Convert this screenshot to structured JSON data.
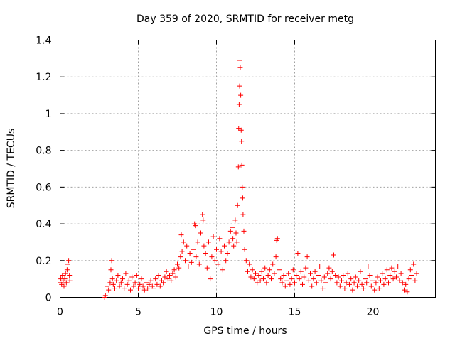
{
  "chart_data": {
    "type": "scatter",
    "title": "Day 359 of 2020, SRMTID for receiver metg",
    "xlabel": "GPS time / hours",
    "ylabel": "SRMTID / TECUs",
    "xlim": [
      0,
      24
    ],
    "ylim": [
      0,
      1.4
    ],
    "xticks": [
      0,
      5,
      10,
      15,
      20
    ],
    "xtick_labels": [
      "0",
      "5",
      "10",
      "15",
      "20"
    ],
    "yticks": [
      0,
      0.2,
      0.4,
      0.6,
      0.8,
      1.0,
      1.2,
      1.4
    ],
    "ytick_labels": [
      "0",
      "0.2",
      "0.4",
      "0.6",
      "0.8",
      "1",
      "1.2",
      "1.4"
    ],
    "grid": true,
    "marker": "+",
    "series": [
      {
        "name": "SRMTID metg",
        "color": "#ff0000",
        "points": [
          [
            0.0,
            0.08
          ],
          [
            0.05,
            0.1
          ],
          [
            0.1,
            0.07
          ],
          [
            0.15,
            0.12
          ],
          [
            0.2,
            0.09
          ],
          [
            0.25,
            0.06
          ],
          [
            0.3,
            0.1
          ],
          [
            0.35,
            0.13
          ],
          [
            0.4,
            0.08
          ],
          [
            0.45,
            0.15
          ],
          [
            0.5,
            0.18
          ],
          [
            0.55,
            0.2
          ],
          [
            0.6,
            0.12
          ],
          [
            0.62,
            0.09
          ],
          [
            2.85,
            0.0
          ],
          [
            2.9,
            0.01
          ],
          [
            3.0,
            0.06
          ],
          [
            3.1,
            0.04
          ],
          [
            3.2,
            0.08
          ],
          [
            3.25,
            0.15
          ],
          [
            3.3,
            0.2
          ],
          [
            3.35,
            0.1
          ],
          [
            3.4,
            0.07
          ],
          [
            3.5,
            0.05
          ],
          [
            3.6,
            0.09
          ],
          [
            3.7,
            0.12
          ],
          [
            3.8,
            0.06
          ],
          [
            3.9,
            0.08
          ],
          [
            4.0,
            0.1
          ],
          [
            4.1,
            0.05
          ],
          [
            4.2,
            0.13
          ],
          [
            4.3,
            0.07
          ],
          [
            4.4,
            0.09
          ],
          [
            4.5,
            0.04
          ],
          [
            4.6,
            0.11
          ],
          [
            4.7,
            0.06
          ],
          [
            4.8,
            0.08
          ],
          [
            4.9,
            0.12
          ],
          [
            5.0,
            0.05
          ],
          [
            5.1,
            0.07
          ],
          [
            5.2,
            0.1
          ],
          [
            5.3,
            0.06
          ],
          [
            5.4,
            0.04
          ],
          [
            5.5,
            0.08
          ],
          [
            5.6,
            0.05
          ],
          [
            5.7,
            0.07
          ],
          [
            5.8,
            0.09
          ],
          [
            5.9,
            0.06
          ],
          [
            6.0,
            0.05
          ],
          [
            6.1,
            0.1
          ],
          [
            6.2,
            0.07
          ],
          [
            6.3,
            0.12
          ],
          [
            6.4,
            0.06
          ],
          [
            6.5,
            0.09
          ],
          [
            6.6,
            0.08
          ],
          [
            6.7,
            0.11
          ],
          [
            6.8,
            0.14
          ],
          [
            6.9,
            0.1
          ],
          [
            7.0,
            0.12
          ],
          [
            7.1,
            0.09
          ],
          [
            7.2,
            0.13
          ],
          [
            7.3,
            0.15
          ],
          [
            7.4,
            0.11
          ],
          [
            7.5,
            0.18
          ],
          [
            7.6,
            0.16
          ],
          [
            7.7,
            0.22
          ],
          [
            7.75,
            0.34
          ],
          [
            7.8,
            0.25
          ],
          [
            7.9,
            0.3
          ],
          [
            8.0,
            0.2
          ],
          [
            8.1,
            0.28
          ],
          [
            8.2,
            0.17
          ],
          [
            8.3,
            0.24
          ],
          [
            8.4,
            0.19
          ],
          [
            8.5,
            0.26
          ],
          [
            8.6,
            0.4
          ],
          [
            8.65,
            0.39
          ],
          [
            8.7,
            0.22
          ],
          [
            8.8,
            0.3
          ],
          [
            8.9,
            0.18
          ],
          [
            9.0,
            0.35
          ],
          [
            9.1,
            0.45
          ],
          [
            9.15,
            0.42
          ],
          [
            9.2,
            0.28
          ],
          [
            9.3,
            0.24
          ],
          [
            9.4,
            0.16
          ],
          [
            9.5,
            0.3
          ],
          [
            9.6,
            0.1
          ],
          [
            9.7,
            0.22
          ],
          [
            9.8,
            0.33
          ],
          [
            9.9,
            0.2
          ],
          [
            10.0,
            0.26
          ],
          [
            10.1,
            0.18
          ],
          [
            10.2,
            0.32
          ],
          [
            10.3,
            0.25
          ],
          [
            10.4,
            0.15
          ],
          [
            10.5,
            0.28
          ],
          [
            10.6,
            0.2
          ],
          [
            10.7,
            0.24
          ],
          [
            10.8,
            0.3
          ],
          [
            10.9,
            0.36
          ],
          [
            11.0,
            0.38
          ],
          [
            11.05,
            0.32
          ],
          [
            11.1,
            0.28
          ],
          [
            11.2,
            0.42
          ],
          [
            11.25,
            0.35
          ],
          [
            11.3,
            0.3
          ],
          [
            11.35,
            0.5
          ],
          [
            11.4,
            0.71
          ],
          [
            11.42,
            0.92
          ],
          [
            11.45,
            1.05
          ],
          [
            11.48,
            1.15
          ],
          [
            11.5,
            1.29
          ],
          [
            11.52,
            1.25
          ],
          [
            11.55,
            1.1
          ],
          [
            11.58,
            0.91
          ],
          [
            11.6,
            0.85
          ],
          [
            11.62,
            0.72
          ],
          [
            11.65,
            0.6
          ],
          [
            11.68,
            0.54
          ],
          [
            11.7,
            0.45
          ],
          [
            11.75,
            0.36
          ],
          [
            11.8,
            0.26
          ],
          [
            11.9,
            0.2
          ],
          [
            12.0,
            0.14
          ],
          [
            12.1,
            0.18
          ],
          [
            12.2,
            0.11
          ],
          [
            12.3,
            0.15
          ],
          [
            12.4,
            0.1
          ],
          [
            12.5,
            0.13
          ],
          [
            12.6,
            0.08
          ],
          [
            12.7,
            0.12
          ],
          [
            12.8,
            0.09
          ],
          [
            12.9,
            0.14
          ],
          [
            13.0,
            0.1
          ],
          [
            13.1,
            0.16
          ],
          [
            13.2,
            0.08
          ],
          [
            13.3,
            0.12
          ],
          [
            13.4,
            0.15
          ],
          [
            13.5,
            0.1
          ],
          [
            13.6,
            0.18
          ],
          [
            13.7,
            0.13
          ],
          [
            13.8,
            0.22
          ],
          [
            13.85,
            0.31
          ],
          [
            13.9,
            0.32
          ],
          [
            14.0,
            0.15
          ],
          [
            14.1,
            0.1
          ],
          [
            14.2,
            0.08
          ],
          [
            14.3,
            0.12
          ],
          [
            14.4,
            0.06
          ],
          [
            14.5,
            0.09
          ],
          [
            14.6,
            0.13
          ],
          [
            14.7,
            0.07
          ],
          [
            14.8,
            0.1
          ],
          [
            14.9,
            0.15
          ],
          [
            15.0,
            0.08
          ],
          [
            15.1,
            0.12
          ],
          [
            15.2,
            0.24
          ],
          [
            15.3,
            0.1
          ],
          [
            15.4,
            0.14
          ],
          [
            15.5,
            0.07
          ],
          [
            15.6,
            0.11
          ],
          [
            15.7,
            0.16
          ],
          [
            15.8,
            0.22
          ],
          [
            15.9,
            0.09
          ],
          [
            16.0,
            0.13
          ],
          [
            16.1,
            0.06
          ],
          [
            16.2,
            0.1
          ],
          [
            16.3,
            0.14
          ],
          [
            16.4,
            0.08
          ],
          [
            16.5,
            0.12
          ],
          [
            16.6,
            0.17
          ],
          [
            16.7,
            0.09
          ],
          [
            16.8,
            0.05
          ],
          [
            16.9,
            0.11
          ],
          [
            17.0,
            0.08
          ],
          [
            17.1,
            0.13
          ],
          [
            17.2,
            0.16
          ],
          [
            17.3,
            0.1
          ],
          [
            17.4,
            0.14
          ],
          [
            17.5,
            0.23
          ],
          [
            17.6,
            0.12
          ],
          [
            17.7,
            0.08
          ],
          [
            17.8,
            0.11
          ],
          [
            17.9,
            0.06
          ],
          [
            18.0,
            0.09
          ],
          [
            18.1,
            0.12
          ],
          [
            18.2,
            0.05
          ],
          [
            18.3,
            0.08
          ],
          [
            18.4,
            0.13
          ],
          [
            18.5,
            0.07
          ],
          [
            18.6,
            0.1
          ],
          [
            18.7,
            0.04
          ],
          [
            18.8,
            0.08
          ],
          [
            18.9,
            0.11
          ],
          [
            19.0,
            0.06
          ],
          [
            19.1,
            0.09
          ],
          [
            19.2,
            0.14
          ],
          [
            19.3,
            0.07
          ],
          [
            19.4,
            0.05
          ],
          [
            19.5,
            0.1
          ],
          [
            19.6,
            0.08
          ],
          [
            19.7,
            0.17
          ],
          [
            19.8,
            0.12
          ],
          [
            19.9,
            0.06
          ],
          [
            20.0,
            0.09
          ],
          [
            20.1,
            0.04
          ],
          [
            20.2,
            0.08
          ],
          [
            20.3,
            0.11
          ],
          [
            20.4,
            0.05
          ],
          [
            20.5,
            0.09
          ],
          [
            20.6,
            0.13
          ],
          [
            20.7,
            0.07
          ],
          [
            20.8,
            0.1
          ],
          [
            20.9,
            0.15
          ],
          [
            21.0,
            0.08
          ],
          [
            21.1,
            0.12
          ],
          [
            21.2,
            0.16
          ],
          [
            21.3,
            0.1
          ],
          [
            21.4,
            0.14
          ],
          [
            21.5,
            0.11
          ],
          [
            21.6,
            0.17
          ],
          [
            21.7,
            0.09
          ],
          [
            21.8,
            0.13
          ],
          [
            21.9,
            0.08
          ],
          [
            22.0,
            0.04
          ],
          [
            22.1,
            0.07
          ],
          [
            22.2,
            0.03
          ],
          [
            22.3,
            0.1
          ],
          [
            22.4,
            0.15
          ],
          [
            22.5,
            0.12
          ],
          [
            22.6,
            0.18
          ],
          [
            22.7,
            0.09
          ],
          [
            22.8,
            0.13
          ]
        ]
      }
    ]
  }
}
